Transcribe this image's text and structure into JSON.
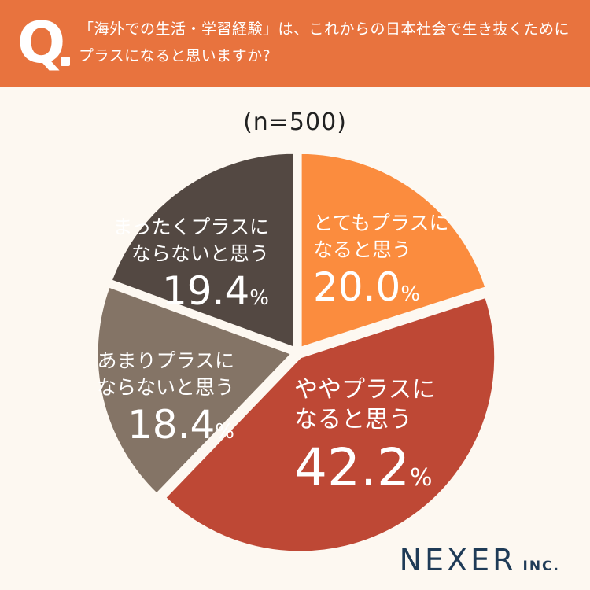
{
  "header": {
    "q_mark": "Q",
    "question_line1": "「海外での生活・学習経験」は、これからの日本社会で生き抜くために",
    "question_line2": "プラスになると思いますか?"
  },
  "sample_size": "(n=500)",
  "logo": {
    "name": "NEXER",
    "suffix": "INC."
  },
  "chart_data": {
    "type": "pie",
    "start_angle": "12 o'clock",
    "direction": "clockwise",
    "slices": [
      {
        "label_line1": "とてもプラスに",
        "label_line2": "なると思う",
        "value": 20.0,
        "value_text": "20.0",
        "color": "#fb8c3e"
      },
      {
        "label_line1": "ややプラスに",
        "label_line2": "なると思う",
        "value": 42.2,
        "value_text": "42.2",
        "color": "#be4835"
      },
      {
        "label_line1": "あまりプラスに",
        "label_line2": "ならないと思う",
        "value": 18.4,
        "value_text": "18.4",
        "color": "#847466"
      },
      {
        "label_line1": "まったくプラスに",
        "label_line2": "ならないと思う",
        "value": 19.4,
        "value_text": "19.4",
        "color": "#534842"
      }
    ],
    "unit": "%",
    "highlight": "ややプラスに なると思う"
  }
}
